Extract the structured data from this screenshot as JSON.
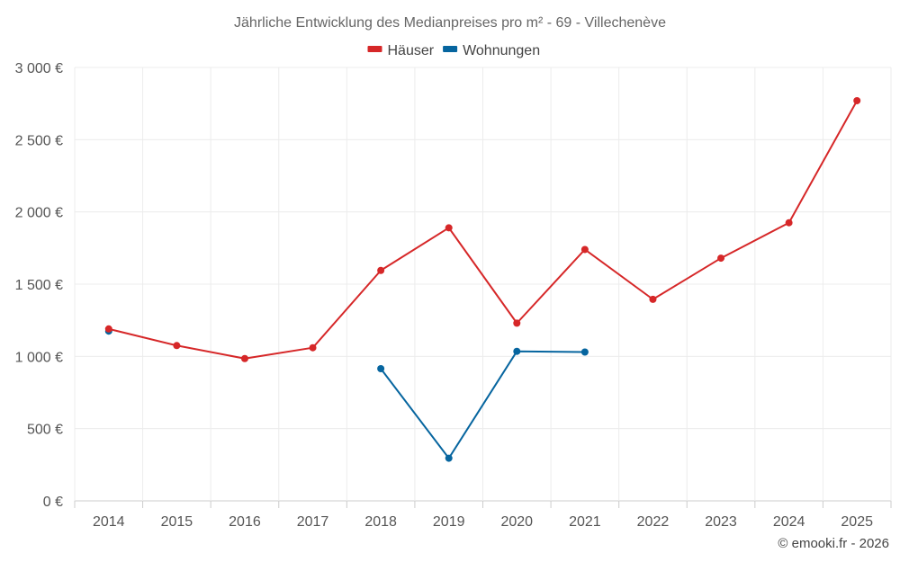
{
  "chart_data": {
    "type": "line",
    "title": "Jährliche Entwicklung des Medianpreises pro m² - 69 - Villechenève",
    "xlabel": "",
    "ylabel": "",
    "categories": [
      "2014",
      "2015",
      "2016",
      "2017",
      "2018",
      "2019",
      "2020",
      "2021",
      "2022",
      "2023",
      "2024",
      "2025"
    ],
    "y_ticks": [
      "0 €",
      "500 €",
      "1 000 €",
      "1 500 €",
      "2 000 €",
      "2 500 €",
      "3 000 €"
    ],
    "ylim": [
      0,
      3000
    ],
    "grid": true,
    "legend_position": "top-center",
    "series": [
      {
        "name": "Häuser",
        "color": "#d62728",
        "values": [
          1190,
          1075,
          985,
          1060,
          1595,
          1890,
          1230,
          1740,
          1395,
          1680,
          1925,
          2770
        ]
      },
      {
        "name": "Wohnungen",
        "color": "#06659f",
        "values": [
          1175,
          null,
          null,
          null,
          915,
          295,
          1035,
          1030,
          null,
          null,
          null,
          null
        ]
      }
    ]
  },
  "credit": "© emooki.fr - 2026"
}
